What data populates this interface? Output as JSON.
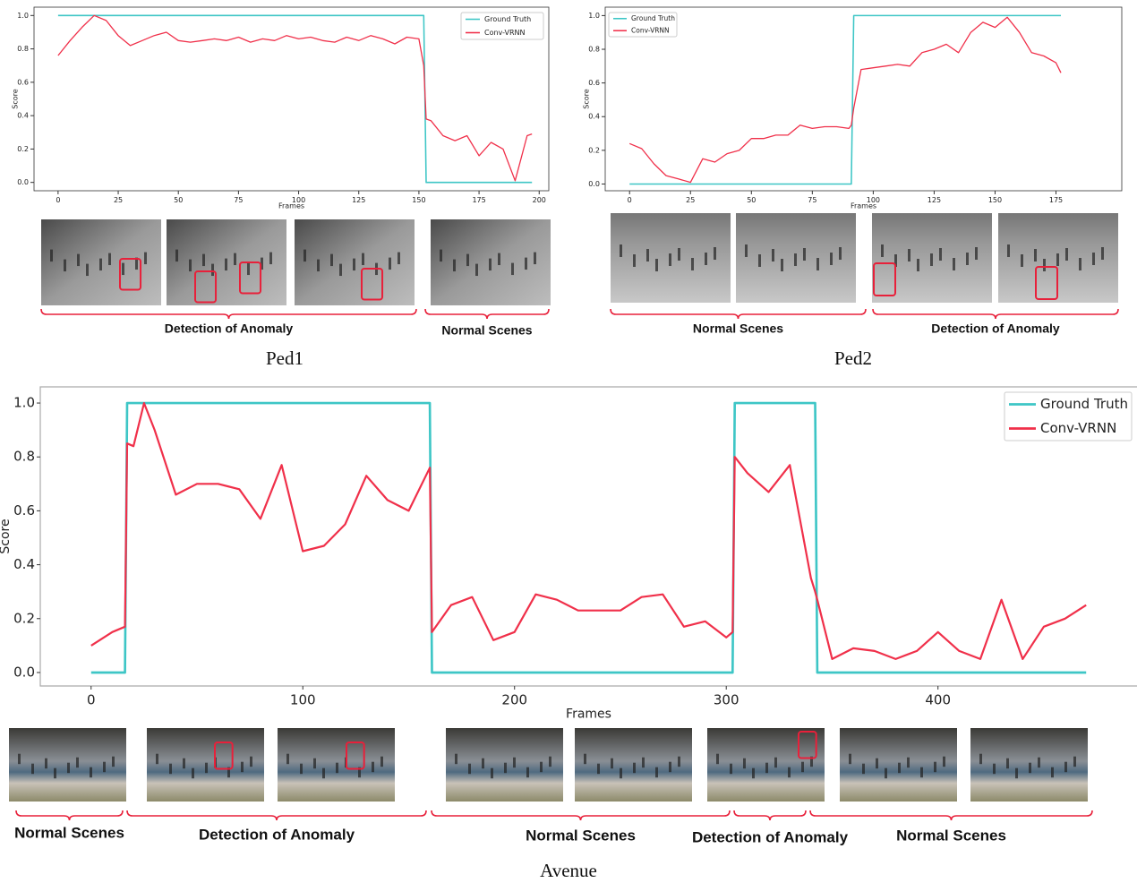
{
  "chart_data": [
    {
      "type": "line",
      "caption": "Ped1",
      "xlabel": "Frames",
      "ylabel": "Score",
      "x": [
        0,
        5,
        10,
        15,
        20,
        25,
        30,
        35,
        40,
        45,
        50,
        55,
        60,
        65,
        70,
        75,
        80,
        85,
        90,
        95,
        100,
        105,
        110,
        115,
        120,
        125,
        130,
        135,
        140,
        145,
        150,
        152,
        153,
        155,
        160,
        165,
        170,
        175,
        180,
        185,
        190,
        195,
        197
      ],
      "series": [
        {
          "name": "Ground Truth",
          "color": "#3ec6c6",
          "values": [
            1,
            1,
            1,
            1,
            1,
            1,
            1,
            1,
            1,
            1,
            1,
            1,
            1,
            1,
            1,
            1,
            1,
            1,
            1,
            1,
            1,
            1,
            1,
            1,
            1,
            1,
            1,
            1,
            1,
            1,
            1,
            1,
            0,
            0,
            0,
            0,
            0,
            0,
            0,
            0,
            0,
            0,
            0
          ]
        },
        {
          "name": "Conv-VRNN",
          "color": "#f0304a",
          "values": [
            0.76,
            0.85,
            0.93,
            1.0,
            0.97,
            0.88,
            0.82,
            0.85,
            0.88,
            0.9,
            0.85,
            0.84,
            0.85,
            0.86,
            0.85,
            0.87,
            0.84,
            0.86,
            0.85,
            0.88,
            0.86,
            0.87,
            0.85,
            0.84,
            0.87,
            0.85,
            0.88,
            0.86,
            0.83,
            0.87,
            0.86,
            0.7,
            0.38,
            0.37,
            0.28,
            0.25,
            0.28,
            0.16,
            0.24,
            0.2,
            0.01,
            0.28,
            0.29
          ]
        }
      ],
      "xlim": [
        -10,
        204
      ],
      "xticks": [
        0,
        25,
        50,
        75,
        100,
        125,
        150,
        175,
        200
      ],
      "ylim": [
        -0.05,
        1.05
      ],
      "yticks": [
        {
          "value": 0,
          "label": "0.0"
        },
        0.2,
        0.4,
        0.6,
        0.8,
        {
          "value": 1,
          "label": "1.0"
        }
      ],
      "legend": "upper right",
      "segments": [
        "Detection of Anomaly",
        "Normal Scenes"
      ]
    },
    {
      "type": "line",
      "caption": "Ped2",
      "xlabel": "Frames",
      "ylabel": "Score",
      "x": [
        0,
        5,
        10,
        15,
        20,
        25,
        30,
        35,
        40,
        45,
        50,
        55,
        60,
        65,
        70,
        75,
        80,
        85,
        90,
        91,
        92,
        95,
        100,
        105,
        110,
        115,
        120,
        125,
        130,
        135,
        140,
        145,
        150,
        155,
        160,
        165,
        170,
        175,
        177
      ],
      "series": [
        {
          "name": "Ground Truth",
          "color": "#3ec6c6",
          "values": [
            0,
            0,
            0,
            0,
            0,
            0,
            0,
            0,
            0,
            0,
            0,
            0,
            0,
            0,
            0,
            0,
            0,
            0,
            0,
            0,
            1,
            1,
            1,
            1,
            1,
            1,
            1,
            1,
            1,
            1,
            1,
            1,
            1,
            1,
            1,
            1,
            1,
            1,
            1
          ]
        },
        {
          "name": "Conv-VRNN",
          "color": "#f0304a",
          "values": [
            0.24,
            0.21,
            0.12,
            0.05,
            0.03,
            0.01,
            0.15,
            0.13,
            0.18,
            0.2,
            0.27,
            0.27,
            0.29,
            0.29,
            0.35,
            0.33,
            0.34,
            0.34,
            0.33,
            0.35,
            0.45,
            0.68,
            0.69,
            0.7,
            0.71,
            0.7,
            0.78,
            0.8,
            0.83,
            0.78,
            0.9,
            0.96,
            0.93,
            0.99,
            0.9,
            0.78,
            0.76,
            0.72,
            0.66
          ]
        }
      ],
      "xlim": [
        -10,
        202
      ],
      "xticks": [
        0,
        25,
        50,
        75,
        100,
        125,
        150,
        175
      ],
      "ylim": [
        -0.04,
        1.05
      ],
      "yticks": [
        {
          "value": 0,
          "label": "0.0"
        },
        0.2,
        0.4,
        0.6,
        0.8,
        {
          "value": 1,
          "label": "1.0"
        }
      ],
      "legend": "upper left",
      "segments": [
        "Normal Scenes",
        "Detection of Anomaly"
      ]
    },
    {
      "type": "line",
      "caption": "Avenue",
      "xlabel": "Frames",
      "ylabel": "Score",
      "x": [
        0,
        10,
        16,
        17,
        20,
        25,
        30,
        40,
        50,
        60,
        70,
        80,
        90,
        100,
        110,
        120,
        130,
        140,
        150,
        160,
        161,
        170,
        180,
        190,
        200,
        210,
        220,
        230,
        240,
        250,
        260,
        270,
        280,
        290,
        300,
        303,
        304,
        310,
        320,
        330,
        340,
        342,
        343,
        350,
        360,
        370,
        380,
        390,
        400,
        410,
        420,
        430,
        440,
        450,
        460,
        470
      ],
      "series": [
        {
          "name": "Ground Truth",
          "color": "#3ec6c6",
          "values": [
            0,
            0,
            0,
            1,
            1,
            1,
            1,
            1,
            1,
            1,
            1,
            1,
            1,
            1,
            1,
            1,
            1,
            1,
            1,
            1,
            0,
            0,
            0,
            0,
            0,
            0,
            0,
            0,
            0,
            0,
            0,
            0,
            0,
            0,
            0,
            0,
            1,
            1,
            1,
            1,
            1,
            1,
            0,
            0,
            0,
            0,
            0,
            0,
            0,
            0,
            0,
            0,
            0,
            0,
            0,
            0
          ]
        },
        {
          "name": "Conv-VRNN",
          "color": "#f0304a",
          "values": [
            0.1,
            0.15,
            0.17,
            0.85,
            0.84,
            1.0,
            0.9,
            0.66,
            0.7,
            0.7,
            0.68,
            0.57,
            0.77,
            0.45,
            0.47,
            0.55,
            0.73,
            0.64,
            0.6,
            0.76,
            0.15,
            0.25,
            0.28,
            0.12,
            0.15,
            0.29,
            0.27,
            0.23,
            0.23,
            0.23,
            0.28,
            0.29,
            0.17,
            0.19,
            0.13,
            0.15,
            0.8,
            0.74,
            0.67,
            0.77,
            0.35,
            0.3,
            0.27,
            0.05,
            0.09,
            0.08,
            0.05,
            0.08,
            0.15,
            0.08,
            0.05,
            0.27,
            0.05,
            0.17,
            0.2,
            0.25
          ]
        }
      ],
      "xlim": [
        -24,
        494
      ],
      "xticks": [
        0,
        100,
        200,
        300,
        400
      ],
      "ylim": [
        -0.05,
        1.06
      ],
      "yticks": [
        {
          "value": 0,
          "label": "0.0"
        },
        0.2,
        0.4,
        0.6,
        0.8,
        {
          "value": 1,
          "label": "1.0"
        }
      ],
      "legend": "upper right",
      "segments": [
        "Normal Scenes",
        "Detection of Anomaly",
        "Normal Scenes",
        "Detection of Anomaly",
        "Normal Scenes"
      ]
    }
  ]
}
